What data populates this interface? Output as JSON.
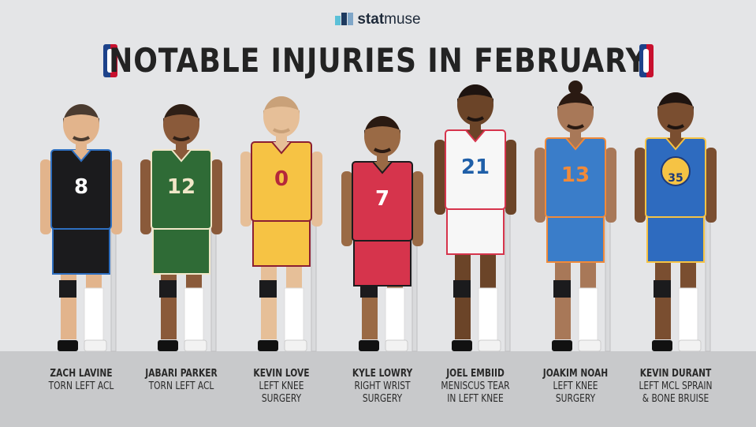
{
  "brand": {
    "bold": "stat",
    "light": "muse",
    "bar_colors": [
      "#5bc0d8",
      "#1e3a5f",
      "#7fa6c8"
    ]
  },
  "title": "NOTABLE INJURIES IN FEBRUARY",
  "colors": {
    "background": "#e4e5e7",
    "floor": "#c8c9cb",
    "nba_blue": "#1d428a",
    "nba_red": "#c8102e"
  },
  "players": [
    {
      "name": "ZACH LAVINE",
      "injury": [
        "TORN LEFT ACL"
      ],
      "number": "8",
      "skin": "#e2b48c",
      "hair": "#4a3b30",
      "jersey": "#1b1b1d",
      "trim": "#2e6fc0",
      "number_color": "#ffffff"
    },
    {
      "name": "JABARI PARKER",
      "injury": [
        "TORN LEFT ACL"
      ],
      "number": "12",
      "skin": "#8a5a3a",
      "hair": "#2e1f16",
      "jersey": "#2f6b36",
      "trim": "#f1e7c8",
      "number_color": "#f1e7c8"
    },
    {
      "name": "KEVIN LOVE",
      "injury": [
        "LEFT KNEE",
        "SURGERY"
      ],
      "number": "0",
      "skin": "#e6bf98",
      "hair": "#c9a179",
      "jersey": "#f6c344",
      "trim": "#8b1f32",
      "number_color": "#b5283a"
    },
    {
      "name": "KYLE LOWRY",
      "injury": [
        "RIGHT WRIST",
        "SURGERY"
      ],
      "number": "7",
      "skin": "#9a6a45",
      "hair": "#2a1a12",
      "jersey": "#d6344c",
      "trim": "#1b1b1d",
      "number_color": "#ffffff"
    },
    {
      "name": "JOEL EMBIID",
      "injury": [
        "MENISCUS TEAR",
        "IN LEFT KNEE"
      ],
      "number": "21",
      "skin": "#6b4428",
      "hair": "#1e1410",
      "jersey": "#f7f7f7",
      "trim": "#d6344c",
      "number_color": "#1f5fa8"
    },
    {
      "name": "JOAKIM NOAH",
      "injury": [
        "LEFT KNEE",
        "SURGERY"
      ],
      "number": "13",
      "skin": "#a87858",
      "hair": "#2a1a12",
      "jersey": "#3a7dc9",
      "trim": "#f08a3a",
      "number_color": "#f08a3a"
    },
    {
      "name": "KEVIN DURANT",
      "injury": [
        "LEFT MCL SPRAIN",
        "& BONE BRUISE"
      ],
      "number": "35",
      "skin": "#7a4e30",
      "hair": "#1e1410",
      "jersey": "#2e6bbf",
      "trim": "#f6c344",
      "number_color": "#f6c344"
    }
  ]
}
